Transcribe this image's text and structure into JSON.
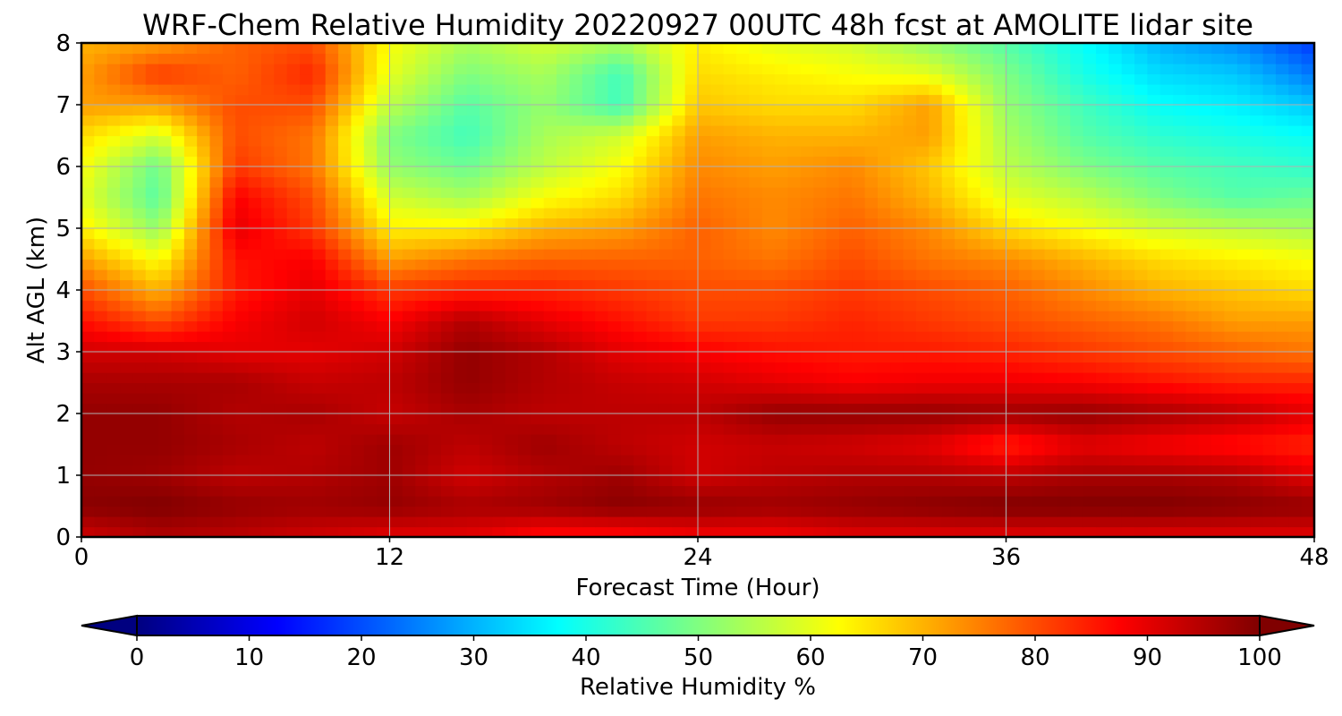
{
  "chart_data": {
    "type": "heatmap",
    "title": "WRF-Chem Relative Humidity 20220927 00UTC 48h fcst at AMOLITE lidar site",
    "xlabel": "Forecast Time (Hour)",
    "ylabel": "Alt AGL (km)",
    "xlim": [
      0,
      48
    ],
    "ylim": [
      0,
      8
    ],
    "x_ticks": [
      0,
      12,
      24,
      36,
      48
    ],
    "y_ticks": [
      0,
      1,
      2,
      3,
      4,
      5,
      6,
      7,
      8
    ],
    "grid": true,
    "colormap": "jet",
    "colorbar": {
      "label": "Relative Humidity %",
      "min": 0,
      "max": 100,
      "ticks": [
        0,
        10,
        20,
        30,
        40,
        50,
        60,
        70,
        80,
        90,
        100
      ],
      "extend": "both",
      "orientation": "horizontal",
      "placement": "bottom"
    },
    "x_hours": [
      0,
      3,
      6,
      9,
      12,
      15,
      18,
      21,
      24,
      27,
      30,
      33,
      36,
      39,
      42,
      45,
      48
    ],
    "alt_km": [
      0,
      0.5,
      1,
      1.5,
      2,
      2.5,
      3,
      3.5,
      4,
      4.5,
      5,
      5.5,
      6,
      6.5,
      7,
      7.5,
      8
    ],
    "rh_percent": [
      [
        92,
        95,
        94,
        92,
        90,
        90,
        86,
        86,
        88,
        88,
        90,
        90,
        90,
        90,
        90,
        90,
        90
      ],
      [
        99,
        100,
        98,
        97,
        98,
        96,
        97,
        99,
        98,
        97,
        98,
        99,
        100,
        100,
        100,
        99,
        98
      ],
      [
        98,
        97,
        94,
        95,
        97,
        92,
        95,
        97,
        92,
        94,
        95,
        95,
        94,
        96,
        96,
        95,
        90
      ],
      [
        98,
        98,
        96,
        94,
        97,
        94,
        97,
        94,
        92,
        93,
        92,
        90,
        84,
        90,
        88,
        86,
        84
      ],
      [
        98,
        98,
        95,
        96,
        93,
        96,
        94,
        94,
        94,
        98,
        98,
        98,
        97,
        98,
        96,
        94,
        90
      ],
      [
        96,
        96,
        96,
        93,
        94,
        98,
        95,
        93,
        92,
        90,
        88,
        89,
        89,
        88,
        86,
        84,
        84
      ],
      [
        92,
        92,
        90,
        90,
        92,
        98,
        95,
        90,
        88,
        86,
        85,
        85,
        84,
        82,
        80,
        78,
        76
      ],
      [
        86,
        80,
        88,
        92,
        88,
        95,
        90,
        86,
        82,
        82,
        84,
        82,
        80,
        78,
        76,
        72,
        72
      ],
      [
        80,
        70,
        85,
        90,
        82,
        84,
        84,
        82,
        80,
        80,
        82,
        80,
        78,
        74,
        70,
        68,
        66
      ],
      [
        72,
        62,
        86,
        88,
        72,
        76,
        78,
        78,
        78,
        76,
        80,
        76,
        74,
        70,
        66,
        64,
        62
      ],
      [
        64,
        52,
        90,
        82,
        64,
        64,
        70,
        72,
        78,
        74,
        78,
        74,
        66,
        62,
        58,
        56,
        54
      ],
      [
        60,
        46,
        88,
        80,
        58,
        54,
        62,
        66,
        76,
        74,
        76,
        70,
        60,
        56,
        50,
        46,
        48
      ],
      [
        62,
        48,
        82,
        76,
        52,
        48,
        56,
        62,
        74,
        72,
        74,
        68,
        56,
        50,
        46,
        44,
        42
      ],
      [
        66,
        58,
        80,
        76,
        50,
        44,
        54,
        58,
        72,
        70,
        70,
        72,
        54,
        46,
        42,
        40,
        38
      ],
      [
        72,
        72,
        80,
        80,
        56,
        46,
        52,
        44,
        68,
        66,
        66,
        72,
        52,
        44,
        38,
        36,
        32
      ],
      [
        72,
        82,
        78,
        84,
        60,
        50,
        54,
        44,
        66,
        64,
        62,
        60,
        50,
        40,
        34,
        32,
        24
      ],
      [
        70,
        72,
        78,
        80,
        62,
        54,
        58,
        54,
        64,
        60,
        58,
        52,
        46,
        38,
        30,
        26,
        18
      ]
    ]
  }
}
